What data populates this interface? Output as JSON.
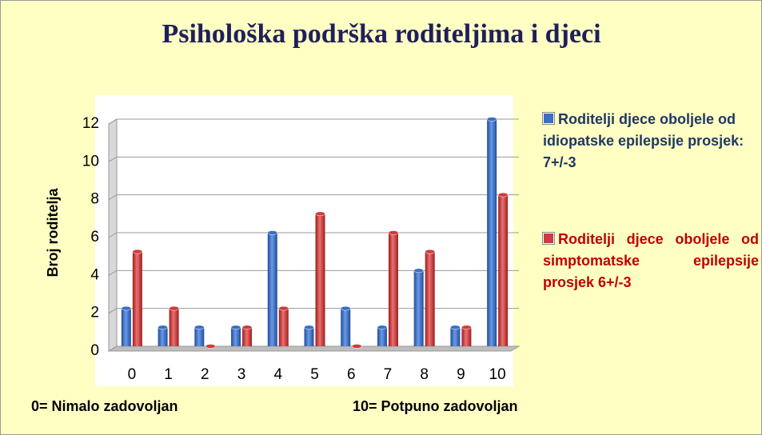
{
  "chart_data": {
    "type": "bar",
    "title": "Psihološka podrška roditeljima i djeci",
    "y_label": "Broj roditelja",
    "categories": [
      "0",
      "1",
      "2",
      "3",
      "4",
      "5",
      "6",
      "7",
      "8",
      "9",
      "10"
    ],
    "series": [
      {
        "name": "Roditelji djece oboljele od idiopatske epilepsije prosjek: 7+/-3",
        "color": "#3a6fc4",
        "text_color": "#1f3864",
        "values": [
          2,
          1,
          1,
          1,
          6,
          1,
          2,
          1,
          4,
          1,
          12
        ]
      },
      {
        "name": "Roditelji djece oboljele od simptomatske epilepsije prosjek 6+/-3",
        "color": "#d03a3a",
        "text_color": "#c00000",
        "values": [
          5,
          2,
          0,
          1,
          2,
          7,
          0,
          6,
          5,
          1,
          8
        ]
      }
    ],
    "ylim": [
      0,
      12
    ],
    "yticks": [
      0,
      2,
      4,
      6,
      8,
      10,
      12
    ],
    "grid": true,
    "annotations": [
      "0= Nimalo zadovoljan",
      "10= Potpuno zadovoljan"
    ]
  }
}
